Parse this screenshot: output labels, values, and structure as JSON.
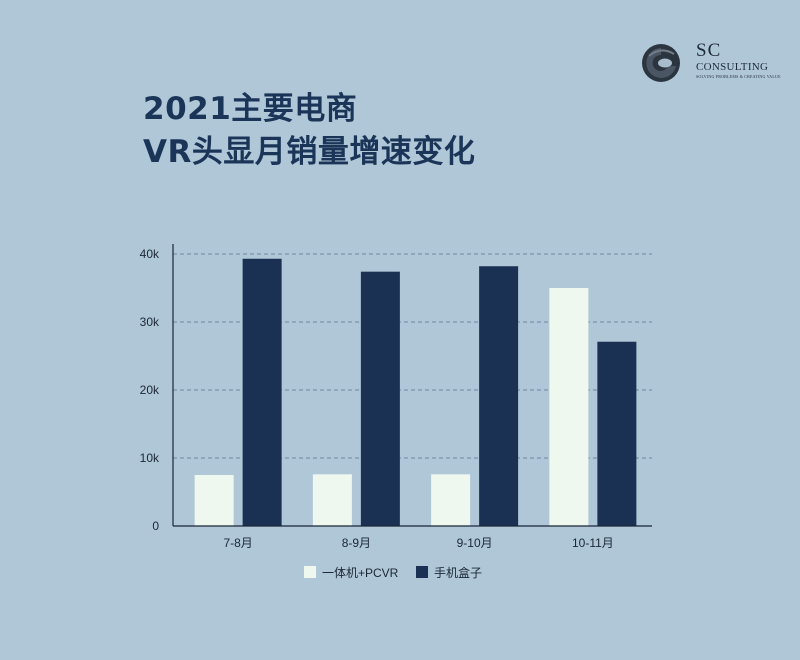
{
  "title": {
    "line1": "2021主要电商",
    "line2": "VR头显月销量增速变化"
  },
  "logo": {
    "mark_icon": "sc-logo-icon",
    "name": "SC",
    "subtitle": "CONSULTING",
    "tagline": "SOLVING PROBLEMS & CREATING VALUE"
  },
  "colors": {
    "background": "#b0c7d8",
    "series_light": "#eef8ee",
    "series_dark": "#1b3153",
    "title": "#1b3558"
  },
  "chart_data": {
    "type": "bar",
    "title": "2021主要电商 VR头显月销量增速变化",
    "categories": [
      "7-8月",
      "8-9月",
      "9-10月",
      "10-11月"
    ],
    "series": [
      {
        "name": "一体机+PCVR",
        "color": "#eef8ee",
        "values": [
          7500,
          7600,
          7600,
          35000
        ]
      },
      {
        "name": "手机盒子",
        "color": "#1b3153",
        "values": [
          39300,
          37400,
          38200,
          27100
        ]
      }
    ],
    "yticks": [
      0,
      10000,
      20000,
      30000,
      40000
    ],
    "ytick_labels": [
      "0",
      "10k",
      "20k",
      "30k",
      "40k"
    ],
    "ylim": [
      0,
      40000
    ],
    "grid": "horizontal dashed",
    "legend": "bottom",
    "xlabel": "",
    "ylabel": ""
  }
}
